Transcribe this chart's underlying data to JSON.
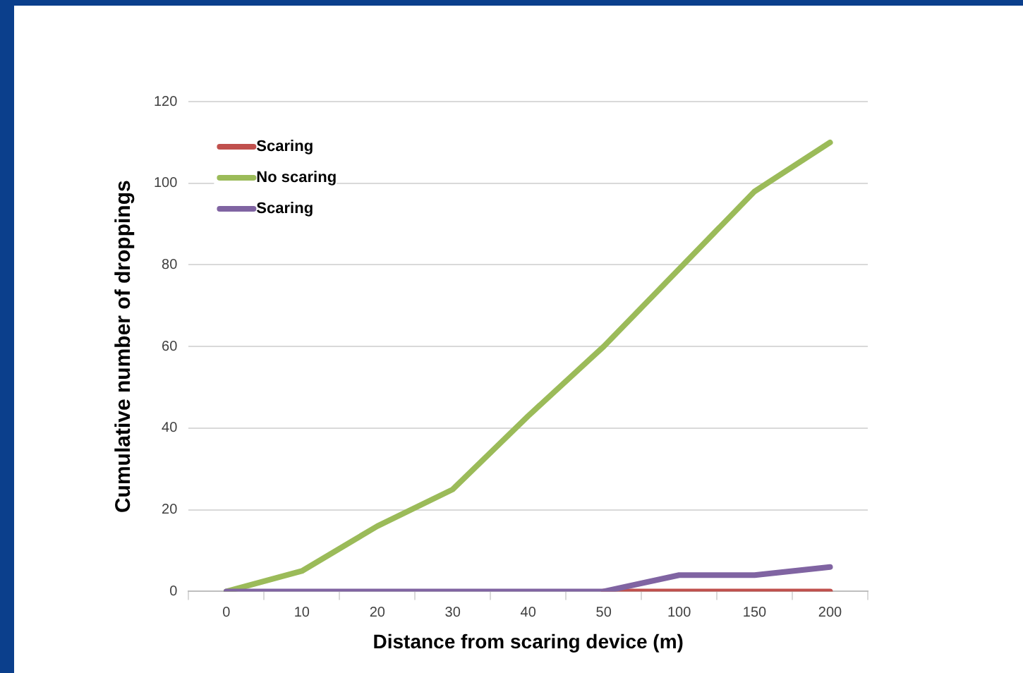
{
  "chart_data": {
    "type": "line",
    "xlabel": "Distance from scaring device (m)",
    "ylabel": "Cumulative number of droppings",
    "categories": [
      "0",
      "10",
      "20",
      "30",
      "40",
      "50",
      "100",
      "150",
      "200"
    ],
    "series": [
      {
        "name": "Scaring",
        "color": "#c0504d",
        "values": [
          null,
          null,
          null,
          null,
          null,
          0,
          0,
          0,
          0
        ]
      },
      {
        "name": "No scaring",
        "color": "#9bbb59",
        "values": [
          0,
          5,
          16,
          25,
          43,
          60,
          79,
          98,
          110
        ]
      },
      {
        "name": "Scaring",
        "color": "#8064a2",
        "values": [
          0,
          0,
          0,
          0,
          0,
          0,
          4,
          4,
          6
        ]
      }
    ],
    "ylim": [
      0,
      120
    ],
    "yticks": [
      0,
      20,
      40,
      60,
      80,
      100,
      120
    ],
    "grid": "y",
    "legend": "top left",
    "marker": "none",
    "line_style": "solid"
  }
}
